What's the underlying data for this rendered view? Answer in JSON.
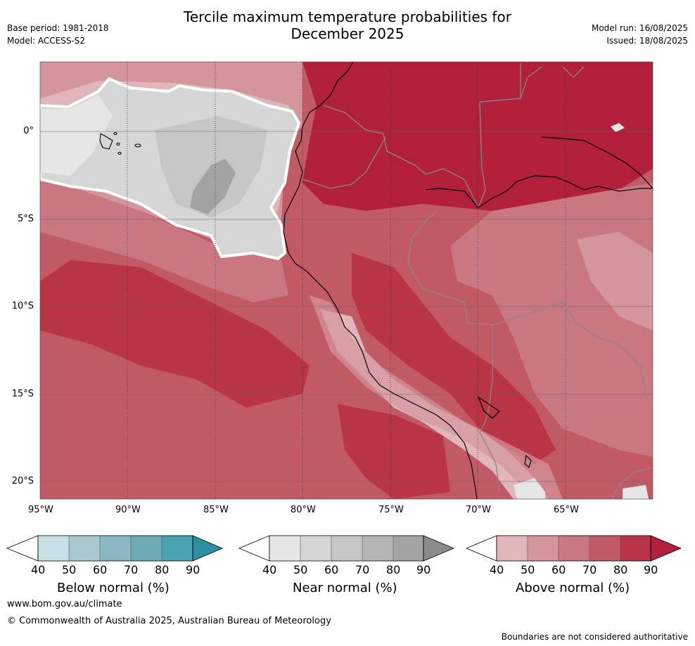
{
  "header": {
    "title_line1": "Tercile maximum temperature probabilities for",
    "title_line2": "December 2025",
    "base_period": "Base period: 1981-2018",
    "model": "Model: ACCESS-S2",
    "model_run": "Model run: 16/08/2025",
    "issued": "Issued: 18/08/2025"
  },
  "map": {
    "lon_ticks": [
      "95°W",
      "90°W",
      "85°W",
      "80°W",
      "75°W",
      "70°W",
      "65°W"
    ],
    "lat_ticks": [
      "0°",
      "5°S",
      "10°S",
      "15°S",
      "20°S"
    ],
    "extent": {
      "lon": [
        -95,
        -60
      ],
      "lat": [
        -21,
        4
      ]
    },
    "palette": {
      "above": [
        "#e1b6bb",
        "#d5959c",
        "#c97781",
        "#c25a66",
        "#b93446",
        "#b11f3a"
      ],
      "near": [
        "#e6e6e6",
        "#d6d6d6",
        "#c6c6c6",
        "#b4b4b4",
        "#a3a3a3",
        "#8a8a8a"
      ],
      "below": [
        "#c8e1e6",
        "#a8c8ce",
        "#8bb7c2",
        "#6eaab5",
        "#4aa1b0",
        "#2e8fa0"
      ]
    }
  },
  "colorbars": [
    {
      "label": "Below normal (%)",
      "ticks": [
        "40",
        "50",
        "60",
        "70",
        "80",
        "90"
      ]
    },
    {
      "label": "Near normal (%)",
      "ticks": [
        "40",
        "50",
        "60",
        "70",
        "80",
        "90"
      ]
    },
    {
      "label": "Above normal (%)",
      "ticks": [
        "40",
        "50",
        "60",
        "70",
        "80",
        "90"
      ]
    }
  ],
  "footer": {
    "url": "www.bom.gov.au/climate",
    "copyright": "© Commonwealth of Australia 2025, Australian Bureau of Meteorology",
    "disclaimer": "Boundaries are not considered authoritative"
  }
}
